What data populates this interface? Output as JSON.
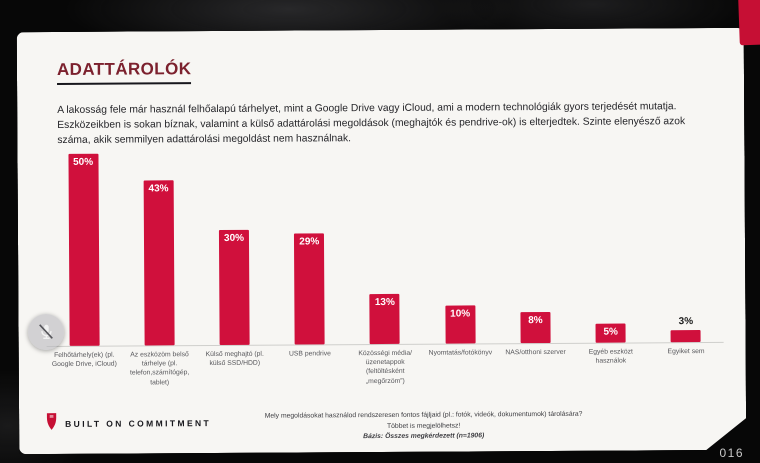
{
  "photo": {
    "page_number": "016"
  },
  "slide": {
    "title": "ADATTÁROLÓK",
    "body": "A lakosság fele már használ felhőalapú tárhelyet, mint a Google Drive vagy iCloud, ami a modern technológiák gyors terjedését mutatja. Eszközeikben is sokan bíznak, valamint a külső adattárolási megoldások (meghajtók és pendrive-ok) is elterjedtek. Szinte elenyésző azok száma, akik semmilyen adattárolási megoldást nem használnak.",
    "footer": {
      "brand": "BUILT ON COMMITMENT",
      "question": "Mely megoldásokat használod rendszeresen fontos fájljaid (pl.: fotók, videók, dokumentumok) tárolására?",
      "note": "Többet is megjelölhetsz!",
      "base": "Bázis: Összes megkérdezett (n=1906)"
    }
  },
  "overlay": {
    "mic_state": "muted"
  },
  "chart_data": {
    "type": "bar",
    "title": "ADATTÁROLÓK",
    "categories": [
      "Felhőtárhely(ek) (pl. Google Drive, iCloud)",
      "Az eszközöm belső tárhelye (pl. telefon,számítógép, tablet)",
      "Külső meghajtó (pl. külső SSD/HDD)",
      "USB pendrive",
      "Közösségi média/üzenetappok (feltöltésként „megőrzöm”)",
      "Nyomtatás/fotókönyv",
      "NAS/otthoni szerver",
      "Egyéb eszközt használok",
      "Egyiket sem"
    ],
    "values": [
      50,
      43,
      30,
      29,
      13,
      10,
      8,
      5,
      3
    ],
    "unit": "%",
    "bar_color": "#d0103c",
    "ylim": [
      0,
      52
    ],
    "grid": false,
    "legend": "none",
    "value_labels": "on"
  }
}
